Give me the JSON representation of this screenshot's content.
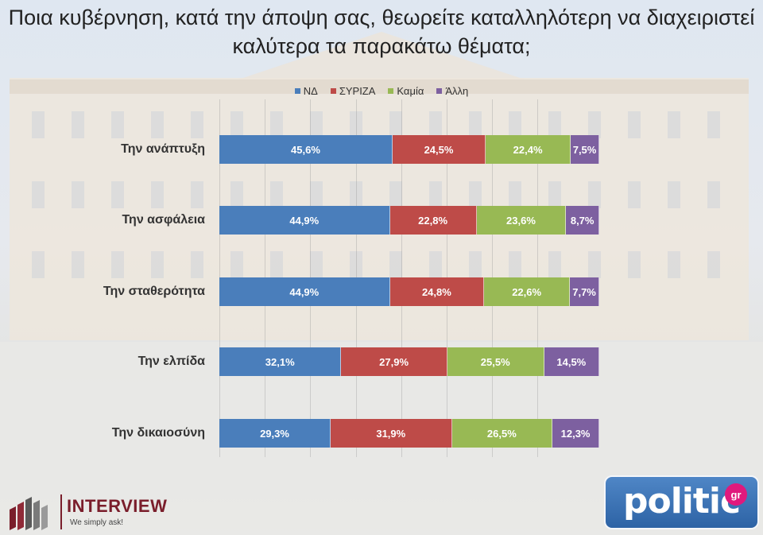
{
  "title": "Ποια κυβέρνηση, κατά την άποψη σας, θεωρείτε καταλληλότερη να διαχειριστεί καλύτερα τα παρακάτω θέματα;",
  "chart_data": {
    "type": "bar",
    "orientation": "horizontal",
    "stacked": true,
    "legend_position": "top",
    "grid": true,
    "xlim": [
      0,
      100
    ],
    "categories": [
      "Την ανάπτυξη",
      "Την ασφάλεια",
      "Την σταθερότητα",
      "Την ελπίδα",
      "Την δικαιοσύνη"
    ],
    "series": [
      {
        "name": "ΝΔ",
        "color": "#4a7ebb",
        "values": [
          45.6,
          44.9,
          44.9,
          32.1,
          29.3
        ],
        "labels": [
          "45,6%",
          "44,9%",
          "44,9%",
          "32,1%",
          "29,3%"
        ]
      },
      {
        "name": "ΣΥΡΙΖΑ",
        "color": "#be4b48",
        "values": [
          24.5,
          22.8,
          24.8,
          27.9,
          31.9
        ],
        "labels": [
          "24,5%",
          "22,8%",
          "24,8%",
          "27,9%",
          "31,9%"
        ]
      },
      {
        "name": "Καμία",
        "color": "#98b954",
        "values": [
          22.4,
          23.6,
          22.6,
          25.5,
          26.5
        ],
        "labels": [
          "22,4%",
          "23,6%",
          "22,6%",
          "25,5%",
          "26,5%"
        ]
      },
      {
        "name": "Άλλη",
        "color": "#7d60a0",
        "values": [
          7.5,
          8.7,
          7.7,
          14.5,
          12.3
        ],
        "labels": [
          "7,5%",
          "8,7%",
          "7,7%",
          "14,5%",
          "12,3%"
        ]
      }
    ]
  },
  "logos": {
    "interview_name": "INTERVIEW",
    "interview_tagline": "We simply ask!",
    "politic_word": "politic",
    "politic_suffix": "gr"
  }
}
